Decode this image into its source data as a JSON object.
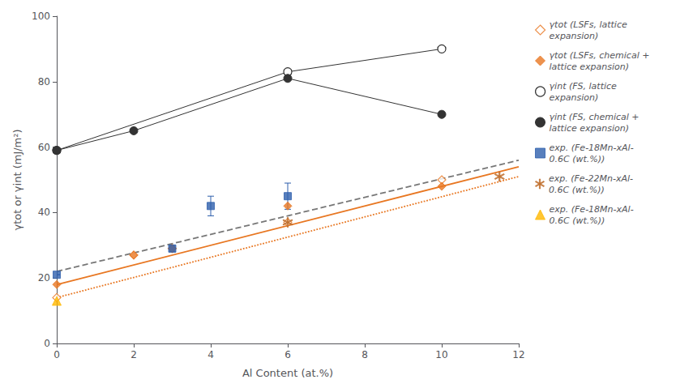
{
  "chart_data": {
    "type": "scatter",
    "xlabel": "Al Content (at.%)",
    "ylabel": "γtot or γint (mJ/m²)",
    "xlim": [
      0,
      12
    ],
    "ylim": [
      0,
      100
    ],
    "xticks": [
      0,
      2,
      4,
      6,
      8,
      10,
      12
    ],
    "yticks": [
      0,
      20,
      40,
      60,
      80,
      100
    ],
    "grid": false,
    "legend": "right",
    "series": [
      {
        "type": "line",
        "color": "#777777",
        "line_style": "dashed",
        "x": [
          0,
          12
        ],
        "y": [
          22,
          56
        ]
      },
      {
        "type": "line",
        "color": "#E87722",
        "line_style": "dotted",
        "x": [
          0,
          12
        ],
        "y": [
          14,
          51
        ]
      },
      {
        "type": "line",
        "color": "#E87722",
        "line_style": "solid",
        "x": [
          0,
          12
        ],
        "y": [
          18,
          54
        ]
      },
      {
        "name": "γtot (LSFs, lattice\nexpansion)",
        "type": "scatter",
        "color": "#E87722",
        "marker": "open_diamond",
        "x": [
          0,
          2,
          3,
          6,
          10
        ],
        "y": [
          14,
          27,
          29,
          37,
          50
        ]
      },
      {
        "name": "γtot (LSFs, chemical +\nlattice expansion)",
        "type": "scatter",
        "color": "#E87722",
        "marker": "diamond",
        "x": [
          0,
          2,
          3,
          6,
          10
        ],
        "y": [
          18,
          27,
          29,
          42,
          48
        ]
      },
      {
        "name": "γint (FS, lattice\nexpansion)",
        "type": "line",
        "color": "#333333",
        "marker": "open_circle",
        "line_style": "solid",
        "x": [
          0,
          6,
          10
        ],
        "y": [
          59,
          83,
          90
        ]
      },
      {
        "name": "γint (FS, chemical +\nlattice expansion)",
        "type": "line",
        "color": "#333333",
        "marker": "circle",
        "line_style": "solid",
        "x": [
          0,
          2,
          6,
          10
        ],
        "y": [
          59,
          65,
          81,
          70
        ]
      },
      {
        "name": "exp. (Fe-18Mn-xAl-\n0.6C (wt.%))",
        "type": "scatter",
        "color": "#2E5FAC",
        "marker": "square",
        "x": [
          0,
          3,
          4,
          6
        ],
        "y": [
          21,
          29,
          42,
          45
        ],
        "yerr": [
          0,
          1,
          3,
          4
        ]
      },
      {
        "name": "exp. (Fe-22Mn-xAl-\n0.6C (wt.%))",
        "type": "scatter",
        "color": "#C07030",
        "marker": "asterisk",
        "x": [
          6,
          11.5
        ],
        "y": [
          37,
          51
        ]
      },
      {
        "name": "exp. (Fe-18Mn-xAl-\n0.6C (wt.%))",
        "type": "scatter",
        "color": "#FFB800",
        "marker": "triangle",
        "x": [
          0
        ],
        "y": [
          13
        ]
      }
    ]
  }
}
